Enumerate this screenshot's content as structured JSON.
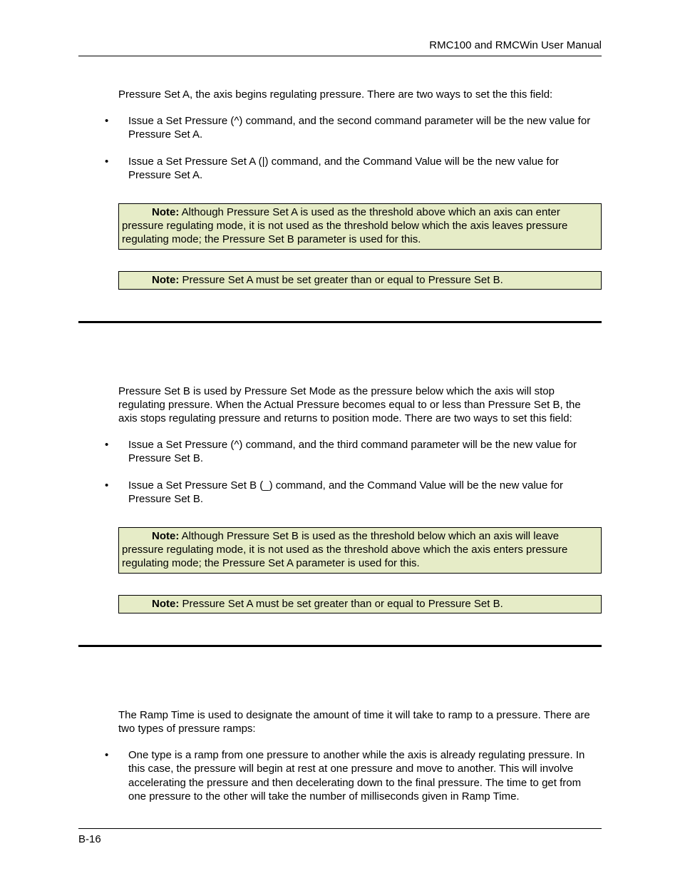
{
  "header": {
    "title": "RMC100 and RMCWin User Manual"
  },
  "section_a": {
    "intro": "Pressure Set A, the axis begins regulating pressure. There are two ways to set the this field:",
    "bullets": [
      "Issue a Set Pressure (^) command, and the second command parameter will be the new value for Pressure Set A.",
      "Issue a Set Pressure Set A (|) command, and the Command Value will be the new value for Pressure Set A."
    ],
    "note1_label": "Note:",
    "note1_text": "Although Pressure Set A is used as the threshold above which an axis can enter pressure regulating mode, it is not used as the threshold below which the axis leaves pressure regulating mode; the Pressure Set B parameter is used for this.",
    "note2_label": "Note:",
    "note2_text": "Pressure Set A must be set greater than or equal to Pressure Set B."
  },
  "section_b": {
    "intro": "Pressure Set B is used by Pressure Set Mode as the pressure below which the axis will stop regulating pressure. When the Actual Pressure becomes equal to or less than Pressure Set B, the axis stops regulating pressure and returns to position mode. There are two ways to set this field:",
    "bullets": [
      "Issue a Set Pressure (^) command, and the third command parameter will be the new value for Pressure Set B.",
      "Issue a Set Pressure Set B (_) command, and the Command Value will be the new value for Pressure Set B."
    ],
    "note1_label": "Note:",
    "note1_text": "Although Pressure Set B is used as the threshold below which an axis will leave pressure regulating mode, it is not used as the threshold above which the axis enters pressure regulating mode; the Pressure Set A parameter is used for this.",
    "note2_label": "Note:",
    "note2_text": "Pressure Set A must be set greater than or equal to Pressure Set B."
  },
  "section_c": {
    "intro": "The Ramp Time is used to designate the amount of time it will take to ramp to a pressure. There are two types of pressure ramps:",
    "bullets": [
      "One type is a ramp from one pressure to another while the axis is already regulating pressure. In this case, the pressure will begin at rest at one pressure and move to another. This will involve accelerating the pressure and then decelerating down to the final pressure. The time to get from one pressure to the other will take the number of milliseconds given in Ramp Time."
    ]
  },
  "footer": {
    "page": "B-16"
  },
  "styles": {
    "note_bg": "#e6ecc7",
    "text_color": "#000000",
    "font_size_body": 15,
    "divider_weight": 3
  }
}
